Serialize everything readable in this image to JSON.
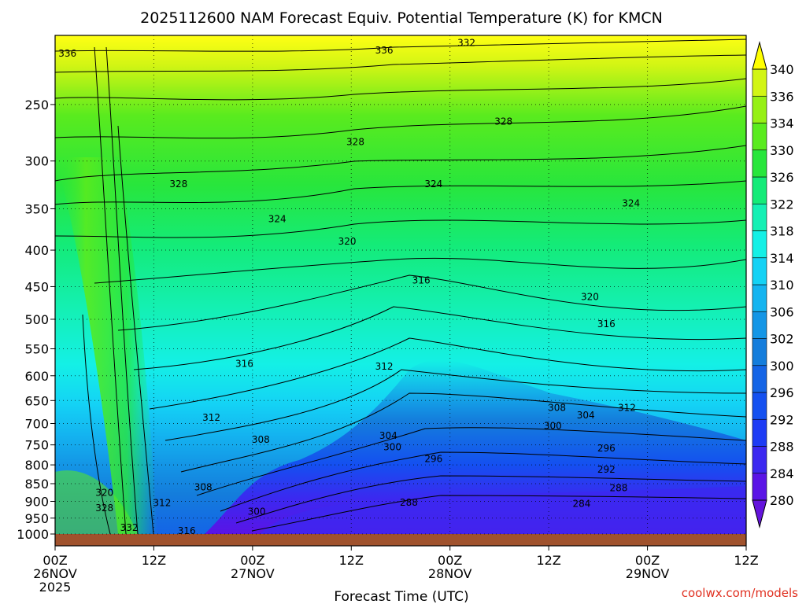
{
  "chart_data": {
    "type": "heatmap",
    "title": "2025112600 NAM Forecast Equiv. Potential Temperature (K) for KMCN",
    "xlabel": "Forecast Time (UTC)",
    "ylabel": "",
    "x_ticks": [
      {
        "hours": 0,
        "lines": [
          "00Z",
          "26NOV",
          "2025"
        ]
      },
      {
        "hours": 12,
        "lines": [
          "12Z"
        ]
      },
      {
        "hours": 24,
        "lines": [
          "00Z",
          "27NOV"
        ]
      },
      {
        "hours": 36,
        "lines": [
          "12Z"
        ]
      },
      {
        "hours": 48,
        "lines": [
          "00Z",
          "28NOV"
        ]
      },
      {
        "hours": 60,
        "lines": [
          "12Z"
        ]
      },
      {
        "hours": 72,
        "lines": [
          "00Z",
          "29NOV"
        ]
      },
      {
        "hours": 84,
        "lines": [
          "12Z"
        ]
      }
    ],
    "x_range_hours": [
      0,
      84
    ],
    "y_ticks": [
      250,
      300,
      350,
      400,
      450,
      500,
      550,
      600,
      650,
      700,
      750,
      800,
      850,
      900,
      950,
      1000
    ],
    "y_range_hpa": [
      200,
      1000
    ],
    "y_scale": "log",
    "colorbar": {
      "levels": [
        280,
        284,
        288,
        292,
        296,
        300,
        302,
        306,
        310,
        314,
        318,
        322,
        326,
        330,
        334,
        336,
        340
      ],
      "colors": [
        "#5a14e6",
        "#3c28f0",
        "#1e3cf5",
        "#1450f0",
        "#1464e6",
        "#147ddc",
        "#1496e6",
        "#14b4f0",
        "#14d2f5",
        "#14f0e6",
        "#14f0b4",
        "#14eb78",
        "#28e63c",
        "#5aeb1e",
        "#96f014",
        "#d2f514",
        "#ffff14"
      ],
      "under_color": "#6414dc",
      "over_color": "#ffff00"
    },
    "contour_labels": [
      {
        "hours": 1.5,
        "hpa": 212,
        "value": "336"
      },
      {
        "hours": 40,
        "hpa": 210,
        "value": "336"
      },
      {
        "hours": 50,
        "hpa": 205,
        "value": "332"
      },
      {
        "hours": 36.5,
        "hpa": 282,
        "value": "328"
      },
      {
        "hours": 54.5,
        "hpa": 264,
        "value": "328"
      },
      {
        "hours": 15,
        "hpa": 323,
        "value": "328"
      },
      {
        "hours": 46,
        "hpa": 323,
        "value": "324"
      },
      {
        "hours": 70,
        "hpa": 344,
        "value": "324"
      },
      {
        "hours": 27,
        "hpa": 362,
        "value": "324"
      },
      {
        "hours": 35.5,
        "hpa": 389,
        "value": "320"
      },
      {
        "hours": 44.5,
        "hpa": 441,
        "value": "316"
      },
      {
        "hours": 65,
        "hpa": 465,
        "value": "320"
      },
      {
        "hours": 67,
        "hpa": 508,
        "value": "316"
      },
      {
        "hours": 23,
        "hpa": 577,
        "value": "316"
      },
      {
        "hours": 40,
        "hpa": 582,
        "value": "312"
      },
      {
        "hours": 61,
        "hpa": 665,
        "value": "308"
      },
      {
        "hours": 64.5,
        "hpa": 682,
        "value": "304"
      },
      {
        "hours": 69.5,
        "hpa": 665,
        "value": "312"
      },
      {
        "hours": 60.5,
        "hpa": 705,
        "value": "300"
      },
      {
        "hours": 19,
        "hpa": 687,
        "value": "312"
      },
      {
        "hours": 25,
        "hpa": 737,
        "value": "308"
      },
      {
        "hours": 40.5,
        "hpa": 728,
        "value": "304"
      },
      {
        "hours": 41,
        "hpa": 755,
        "value": "300"
      },
      {
        "hours": 46,
        "hpa": 785,
        "value": "296"
      },
      {
        "hours": 67,
        "hpa": 758,
        "value": "296"
      },
      {
        "hours": 67,
        "hpa": 812,
        "value": "292"
      },
      {
        "hours": 68.5,
        "hpa": 862,
        "value": "288"
      },
      {
        "hours": 64,
        "hpa": 907,
        "value": "284"
      },
      {
        "hours": 43,
        "hpa": 903,
        "value": "288"
      },
      {
        "hours": 18,
        "hpa": 860,
        "value": "308"
      },
      {
        "hours": 24.5,
        "hpa": 930,
        "value": "300"
      },
      {
        "hours": 6,
        "hpa": 875,
        "value": "320"
      },
      {
        "hours": 6,
        "hpa": 920,
        "value": "328"
      },
      {
        "hours": 13,
        "hpa": 905,
        "value": "312"
      },
      {
        "hours": 9,
        "hpa": 980,
        "value": "332"
      },
      {
        "hours": 16,
        "hpa": 990,
        "value": "316"
      }
    ]
  },
  "credit": "coolwx.com/models"
}
